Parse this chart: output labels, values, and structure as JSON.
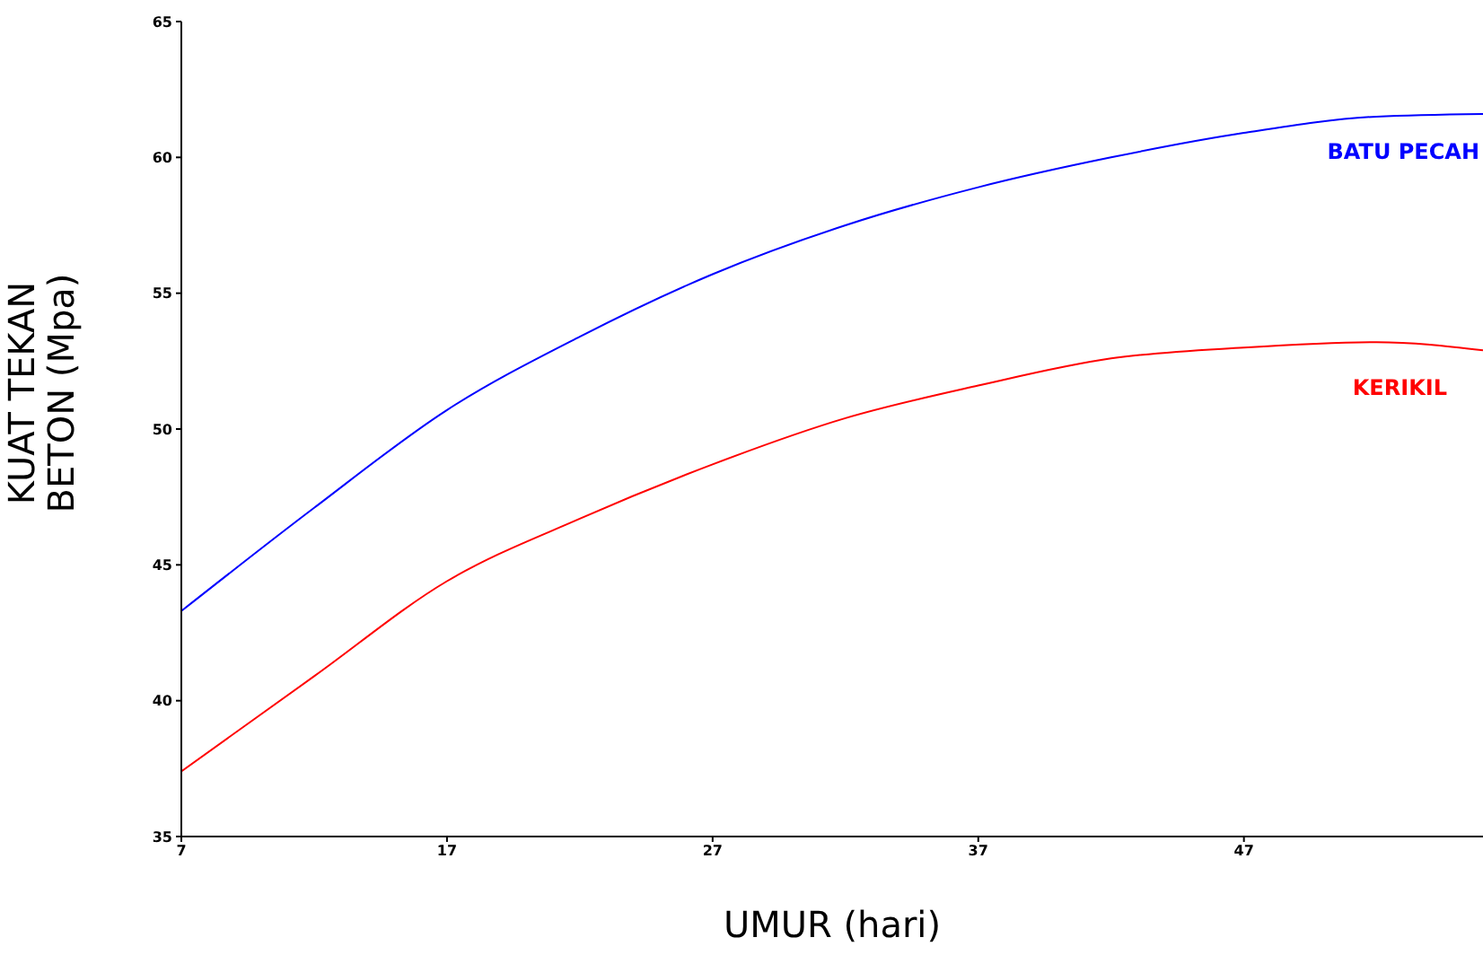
{
  "chart_data": {
    "type": "line",
    "xlabel": "UMUR (hari)",
    "ylabel": "KUAT TEKAN\nBETON (Mpa)",
    "x": [
      7,
      12,
      17,
      22,
      27,
      32,
      37,
      42,
      47,
      52,
      56
    ],
    "xlim": [
      7,
      56
    ],
    "xticks": [
      7,
      17,
      27,
      37,
      47
    ],
    "ylim": [
      35,
      65
    ],
    "yticks": [
      35,
      40,
      45,
      50,
      55,
      60,
      65
    ],
    "grid": false,
    "legend": false,
    "marker": "none",
    "line_style": "solid",
    "series": [
      {
        "name": "BATU PECAH",
        "color": "#0000ff",
        "values": [
          43.3,
          47.1,
          50.7,
          53.4,
          55.7,
          57.5,
          58.9,
          60.0,
          60.9,
          61.5,
          61.6
        ]
      },
      {
        "name": "KERIKIL",
        "color": "#ff0000",
        "values": [
          37.4,
          40.9,
          44.4,
          46.7,
          48.7,
          50.4,
          51.6,
          52.6,
          53.0,
          53.2,
          52.9
        ]
      }
    ]
  }
}
